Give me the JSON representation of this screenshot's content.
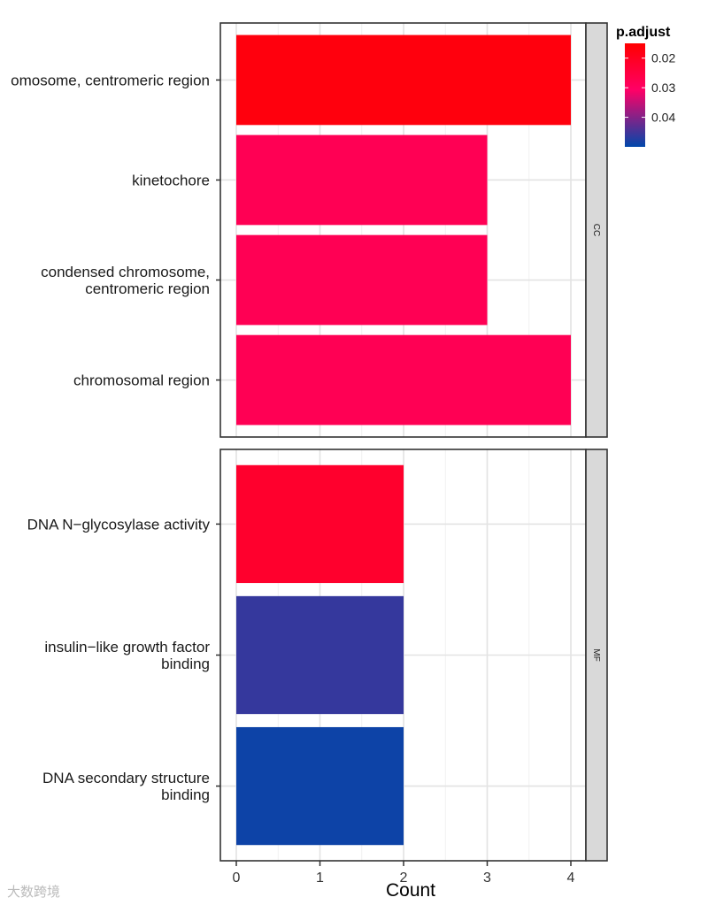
{
  "chart_data": {
    "type": "bar",
    "orientation": "horizontal",
    "xlabel": "Count",
    "xlim": [
      0,
      4
    ],
    "x_ticks": [
      "0",
      "1",
      "2",
      "3",
      "4"
    ],
    "grid": true,
    "facets": [
      {
        "label": "CC",
        "bars": [
          {
            "category": "omosome, centromeric region",
            "value": 4,
            "p_adjust": 0.017
          },
          {
            "category": "kinetochore",
            "value": 3,
            "p_adjust": 0.028
          },
          {
            "category": "condensed chromosome,\ncentromeric region",
            "value": 3,
            "p_adjust": 0.028
          },
          {
            "category": "chromosomal region",
            "value": 4,
            "p_adjust": 0.028
          }
        ]
      },
      {
        "label": "MF",
        "bars": [
          {
            "category": "DNA N−glycosylase activity",
            "value": 2,
            "p_adjust": 0.022
          },
          {
            "category": "insulin−like growth factor\nbinding",
            "value": 2,
            "p_adjust": 0.046
          },
          {
            "category": "DNA secondary structure\nbinding",
            "value": 2,
            "p_adjust": 0.049
          }
        ]
      }
    ],
    "legend": {
      "title": "p.adjust",
      "position": "top-right",
      "range": [
        0.015,
        0.05
      ],
      "ticks": [
        "0.02",
        "0.03",
        "0.04"
      ],
      "low_color": "#ff0000",
      "mid_color": "#ff0066",
      "high_color": "#0047ab"
    }
  },
  "watermark": "大数跨境"
}
